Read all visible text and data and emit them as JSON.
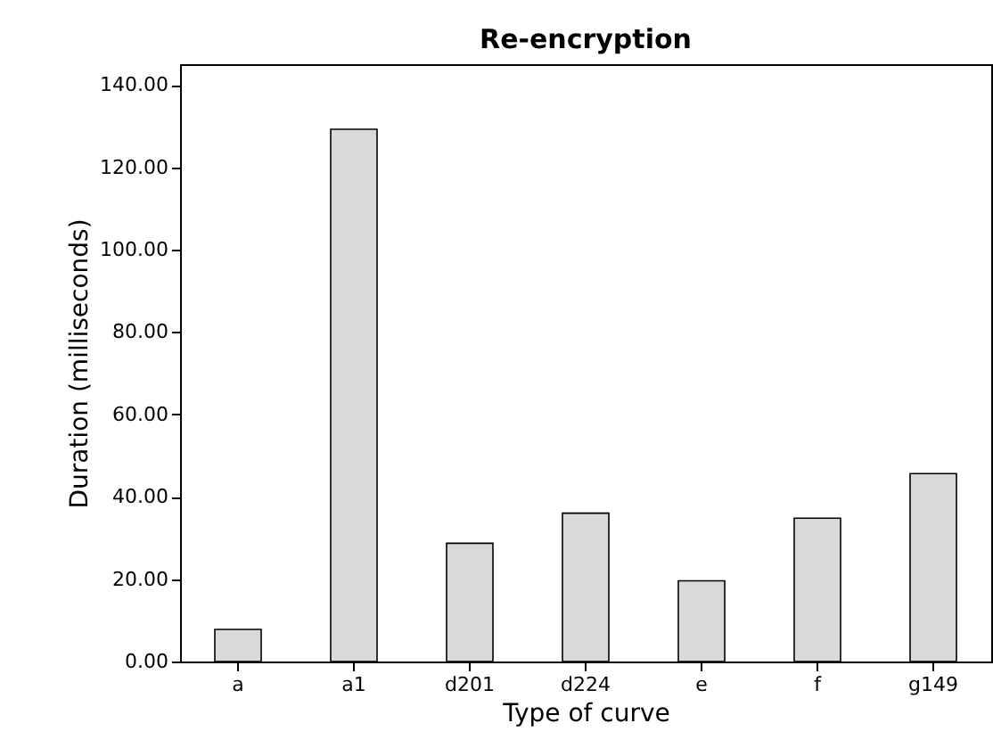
{
  "chart_data": {
    "type": "bar",
    "title": "Re-encryption",
    "xlabel": "Type of curve",
    "ylabel": "Duration (milliseconds)",
    "categories": [
      "a",
      "a1",
      "d201",
      "d224",
      "e",
      "f",
      "g149"
    ],
    "values": [
      7.8,
      129.2,
      28.7,
      36.0,
      19.6,
      34.8,
      45.6
    ],
    "color": "#d9d9d9",
    "ylim": [
      0,
      145
    ],
    "yticks": [
      {
        "value": 0,
        "label": "0.00"
      },
      {
        "value": 20,
        "label": "20.00"
      },
      {
        "value": 40,
        "label": "40.00"
      },
      {
        "value": 60,
        "label": "60.00"
      },
      {
        "value": 80,
        "label": "80.00"
      },
      {
        "value": 100,
        "label": "100.00"
      },
      {
        "value": 120,
        "label": "120.00"
      },
      {
        "value": 140,
        "label": "140.00"
      }
    ],
    "grid": false
  }
}
